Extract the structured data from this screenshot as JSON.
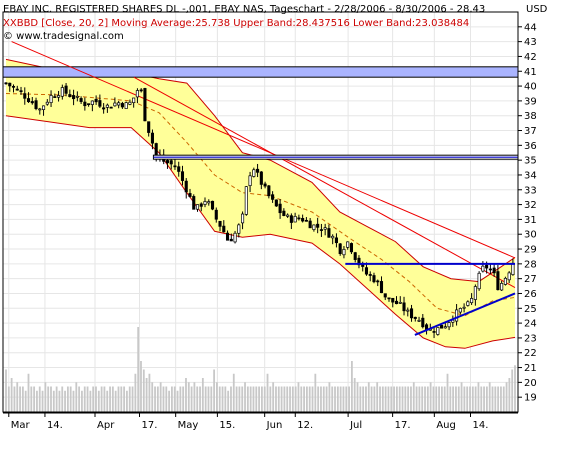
{
  "header": {
    "title": "EBAY INC. REGISTERED SHARES DL -,001, EBAY NAS, Tageschart - 2/28/2006 - 8/30/2006 - 28.43",
    "indicator": "BBD [Close, 20, 2] Moving Average:25.738 Upper Band:28.437516 Lower Band:23.038484",
    "indicator_prefix": "XX",
    "source": "© www.tradesignal.com",
    "currency": "USD"
  },
  "colors": {
    "band_fill": "#ffff99",
    "band_line": "#cc0000",
    "moving_average": "#cc6600",
    "trendline_red": "#ee0000",
    "horizontal_level": "#0000cc",
    "support_line": "#0000cc",
    "candles": "#000000",
    "volume": "#c8c8c8",
    "grid": "#e6e6e6",
    "zone_fill": "#aab4ff"
  },
  "chart_data": {
    "type": "candlestick",
    "title": "EBAY INC. REGISTERED SHARES DL -,001, EBAY NAS, Tageschart - 2/28/2006 - 8/30/2006 - 28.43",
    "ylabel": "USD",
    "ylim": [
      18,
      45
    ],
    "y_ticks": [
      19,
      20,
      21,
      22,
      23,
      24,
      25,
      26,
      27,
      28,
      29,
      30,
      31,
      32,
      33,
      34,
      35,
      36,
      37,
      38,
      39,
      40,
      41,
      42,
      43,
      44
    ],
    "x_ticks": [
      "Mar",
      "14.",
      "Apr",
      "17.",
      "May",
      "15.",
      "Jun",
      "12.",
      "Jul",
      "17.",
      "Aug",
      "14."
    ],
    "x_tick_days": [
      1,
      14,
      32,
      48,
      61,
      76,
      93,
      104,
      123,
      139,
      154,
      167
    ],
    "last_day": 183,
    "grid": true,
    "close_path": [
      [
        0,
        40.2
      ],
      [
        5,
        39.6
      ],
      [
        9,
        39.0
      ],
      [
        12,
        38.4
      ],
      [
        16,
        39.3
      ],
      [
        20,
        39.7
      ],
      [
        24,
        39.3
      ],
      [
        28,
        38.8
      ],
      [
        32,
        39.0
      ],
      [
        36,
        38.6
      ],
      [
        40,
        38.9
      ],
      [
        44,
        38.7
      ],
      [
        47,
        39.5
      ],
      [
        48,
        40.4
      ],
      [
        50,
        37.8
      ],
      [
        52,
        36.6
      ],
      [
        54,
        35.3
      ],
      [
        57,
        34.9
      ],
      [
        61,
        34.6
      ],
      [
        65,
        33.0
      ],
      [
        68,
        31.6
      ],
      [
        72,
        32.4
      ],
      [
        75,
        31.2
      ],
      [
        78,
        30.3
      ],
      [
        80,
        29.5
      ],
      [
        83,
        30.2
      ],
      [
        85,
        31.1
      ],
      [
        87,
        33.9
      ],
      [
        89,
        34.5
      ],
      [
        92,
        33.4
      ],
      [
        95,
        32.4
      ],
      [
        99,
        31.4
      ],
      [
        102,
        31.0
      ],
      [
        106,
        31.1
      ],
      [
        110,
        30.6
      ],
      [
        114,
        30.4
      ],
      [
        118,
        29.7
      ],
      [
        120,
        28.9
      ],
      [
        123,
        29.5
      ],
      [
        126,
        28.3
      ],
      [
        129,
        27.4
      ],
      [
        133,
        26.9
      ],
      [
        137,
        25.6
      ],
      [
        141,
        25.3
      ],
      [
        145,
        24.6
      ],
      [
        149,
        24.2
      ],
      [
        152,
        23.5
      ],
      [
        155,
        23.6
      ],
      [
        158,
        23.9
      ],
      [
        161,
        24.5
      ],
      [
        164,
        25.0
      ],
      [
        167,
        25.3
      ],
      [
        169,
        26.7
      ],
      [
        172,
        27.9
      ],
      [
        175,
        27.5
      ],
      [
        177,
        26.4
      ],
      [
        179,
        26.9
      ],
      [
        181,
        27.6
      ],
      [
        183,
        28.43
      ]
    ],
    "moving_average_path": [
      [
        0,
        39.5
      ],
      [
        20,
        39.4
      ],
      [
        45,
        39.0
      ],
      [
        55,
        38.2
      ],
      [
        65,
        36.2
      ],
      [
        75,
        34.0
      ],
      [
        85,
        32.8
      ],
      [
        95,
        32.6
      ],
      [
        110,
        31.5
      ],
      [
        123,
        29.8
      ],
      [
        135,
        28.3
      ],
      [
        145,
        26.8
      ],
      [
        155,
        25.0
      ],
      [
        165,
        24.5
      ],
      [
        175,
        25.5
      ],
      [
        183,
        25.738
      ]
    ],
    "upper_band_path": [
      [
        0,
        41.8
      ],
      [
        15,
        41.2
      ],
      [
        30,
        40.6
      ],
      [
        45,
        40.9
      ],
      [
        55,
        40.5
      ],
      [
        65,
        40.2
      ],
      [
        75,
        38.0
      ],
      [
        85,
        35.5
      ],
      [
        95,
        35.0
      ],
      [
        110,
        33.5
      ],
      [
        120,
        31.5
      ],
      [
        130,
        30.5
      ],
      [
        140,
        29.5
      ],
      [
        150,
        27.8
      ],
      [
        160,
        27.0
      ],
      [
        170,
        26.8
      ],
      [
        178,
        27.8
      ],
      [
        183,
        28.437516
      ]
    ],
    "lower_band_path": [
      [
        0,
        38.0
      ],
      [
        15,
        37.6
      ],
      [
        30,
        37.2
      ],
      [
        45,
        37.2
      ],
      [
        55,
        35.5
      ],
      [
        65,
        32.8
      ],
      [
        75,
        30.2
      ],
      [
        85,
        29.8
      ],
      [
        95,
        30.0
      ],
      [
        110,
        29.4
      ],
      [
        120,
        28.0
      ],
      [
        130,
        26.3
      ],
      [
        140,
        24.6
      ],
      [
        150,
        23.0
      ],
      [
        158,
        22.4
      ],
      [
        165,
        22.3
      ],
      [
        175,
        22.8
      ],
      [
        183,
        23.038484
      ]
    ],
    "trendline_red_a": [
      [
        2,
        43.0
      ],
      [
        183,
        28.4
      ]
    ],
    "trendline_red_b": [
      [
        46,
        40.6
      ],
      [
        183,
        26.4
      ]
    ],
    "horizontal_zone": [
      40.6,
      41.3
    ],
    "horizontal_level_35": 35.2,
    "horizontal_level_28": 28.0,
    "horizontal_level_28_range": [
      122,
      183
    ],
    "support_line": [
      [
        147,
        23.2
      ],
      [
        183,
        26.0
      ]
    ],
    "volume_relative": [
      0.5,
      0.3,
      0.4,
      0.3,
      0.35,
      0.3,
      0.3,
      0.25,
      0.45,
      0.3,
      0.3,
      0.25,
      0.3,
      0.25,
      0.35,
      0.3,
      0.3,
      0.25,
      0.3,
      0.25,
      0.3,
      0.25,
      0.3,
      0.3,
      0.25,
      0.35,
      0.3,
      0.25,
      0.3,
      0.3,
      0.25,
      0.3,
      0.3,
      0.25,
      0.3,
      0.3,
      0.25,
      0.3,
      0.3,
      0.25,
      0.3,
      0.3,
      0.3,
      0.25,
      0.3,
      0.3,
      0.45,
      1.0,
      0.6,
      0.5,
      0.4,
      0.45,
      0.35,
      0.3,
      0.3,
      0.35,
      0.3,
      0.3,
      0.25,
      0.3,
      0.3,
      0.25,
      0.3,
      0.3,
      0.4,
      0.35,
      0.3,
      0.35,
      0.3,
      0.3,
      0.4,
      0.3,
      0.3,
      0.3,
      0.5,
      0.35,
      0.3,
      0.3,
      0.3,
      0.25,
      0.3,
      0.45,
      0.3,
      0.3,
      0.3,
      0.35,
      0.3,
      0.3,
      0.3,
      0.3,
      0.3,
      0.3,
      0.3,
      0.45,
      0.3,
      0.35,
      0.3,
      0.3,
      0.3,
      0.3,
      0.3,
      0.3,
      0.3,
      0.3,
      0.35,
      0.3,
      0.3,
      0.3,
      0.3,
      0.3,
      0.45,
      0.3,
      0.3,
      0.3,
      0.3,
      0.35,
      0.3,
      0.3,
      0.3,
      0.3,
      0.3,
      0.3,
      0.3,
      0.6,
      0.4,
      0.35,
      0.3,
      0.3,
      0.3,
      0.35,
      0.3,
      0.3,
      0.35,
      0.3,
      0.3,
      0.3,
      0.3,
      0.3,
      0.3,
      0.3,
      0.3,
      0.3,
      0.3,
      0.3,
      0.3,
      0.35,
      0.3,
      0.3,
      0.3,
      0.3,
      0.3,
      0.35,
      0.3,
      0.3,
      0.3,
      0.3,
      0.3,
      0.45,
      0.3,
      0.3,
      0.3,
      0.3,
      0.35,
      0.3,
      0.3,
      0.3,
      0.3,
      0.3,
      0.35,
      0.3,
      0.3,
      0.3,
      0.35,
      0.3,
      0.3,
      0.3,
      0.3,
      0.3,
      0.35,
      0.4,
      0.5,
      0.55
    ]
  }
}
